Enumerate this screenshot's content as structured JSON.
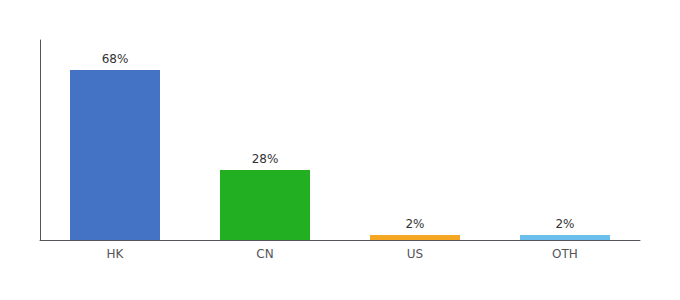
{
  "chart_data": {
    "type": "bar",
    "categories": [
      "HK",
      "CN",
      "US",
      "OTH"
    ],
    "values": [
      68,
      28,
      2,
      2
    ],
    "value_labels": [
      "68%",
      "28%",
      "2%",
      "2%"
    ],
    "data_labels": true,
    "colors": [
      "#4472c4",
      "#22b022",
      "#f5a623",
      "#6bbfed"
    ],
    "ylim": [
      0,
      80
    ],
    "tick_labels": "x",
    "grid": false
  }
}
